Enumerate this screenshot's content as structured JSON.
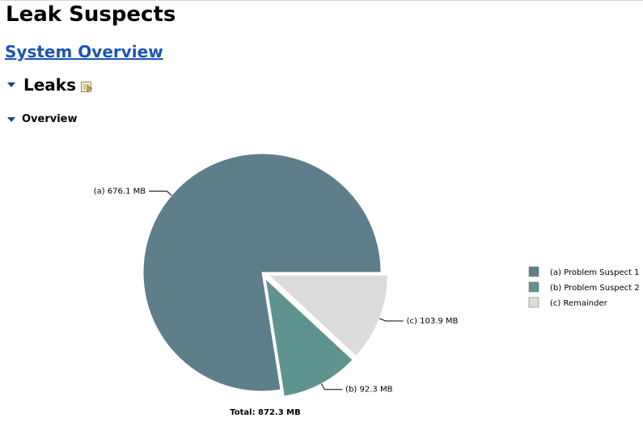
{
  "page": {
    "title": "Leak Suspects"
  },
  "nav": {
    "system_overview_link": "System Overview"
  },
  "leaks_section": {
    "heading": "Leaks",
    "details_icon": "details-icon",
    "expand_icon": "triangle-down-icon"
  },
  "overview_section": {
    "heading": "Overview",
    "expand_icon": "triangle-down-icon"
  },
  "chart_data": {
    "type": "pie",
    "total_label": "Total: 872.3 MB",
    "slices": [
      {
        "key": "(a)",
        "name": "Problem Suspect 1",
        "value": 676.1,
        "value_label": "676.1 MB",
        "color": "#5f7e8c",
        "exploded": false
      },
      {
        "key": "(b)",
        "name": "Problem Suspect 2",
        "value": 92.3,
        "value_label": "92.3 MB",
        "color": "#5f9390",
        "exploded": true
      },
      {
        "key": "(c)",
        "name": "Remainder",
        "value": 103.9,
        "value_label": "103.9 MB",
        "color": "#dcdcdc",
        "exploded": true
      }
    ],
    "legend_position": "right"
  }
}
